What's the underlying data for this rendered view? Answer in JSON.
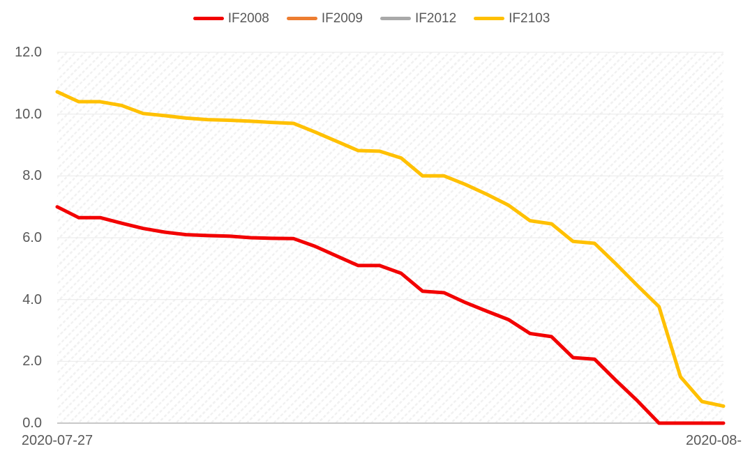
{
  "chart_data": {
    "type": "line",
    "title": "",
    "legend_position": "top",
    "grid": "horizontal",
    "plot_background": "diagonal-hatch",
    "ylim": [
      0,
      12
    ],
    "y_ticks": [
      "0.0",
      "2.0",
      "4.0",
      "6.0",
      "8.0",
      "10.0",
      "12.0"
    ],
    "x_axis": {
      "left_label": "2020-07-27",
      "right_label": "2020-08-",
      "point_count": 32
    },
    "axis_text_color": "#595959",
    "gridline_color": "#e9e9e9",
    "axis_line_color": "#c8c8c8",
    "series": [
      {
        "name": "IF2008",
        "color": "#f20000",
        "values": [
          7.0,
          6.65,
          6.65,
          6.47,
          6.3,
          6.18,
          6.1,
          6.07,
          6.05,
          6.0,
          5.98,
          5.97,
          5.72,
          5.41,
          5.1,
          5.1,
          4.85,
          4.27,
          4.22,
          3.9,
          3.62,
          3.35,
          2.9,
          2.8,
          2.12,
          2.07,
          1.38,
          0.72,
          0.0,
          0.0,
          0.0,
          0.0
        ]
      },
      {
        "name": "IF2009",
        "color": "#ed7d31",
        "values": []
      },
      {
        "name": "IF2012",
        "color": "#a9a9a9",
        "values": []
      },
      {
        "name": "IF2103",
        "color": "#ffc000",
        "values": [
          10.72,
          10.4,
          10.4,
          10.28,
          10.02,
          9.95,
          9.87,
          9.82,
          9.8,
          9.77,
          9.73,
          9.7,
          9.42,
          9.12,
          8.82,
          8.8,
          8.58,
          8.0,
          8.0,
          7.72,
          7.4,
          7.05,
          6.55,
          6.45,
          5.88,
          5.82,
          5.15,
          4.45,
          3.77,
          1.5,
          0.7,
          0.55
        ]
      }
    ]
  }
}
